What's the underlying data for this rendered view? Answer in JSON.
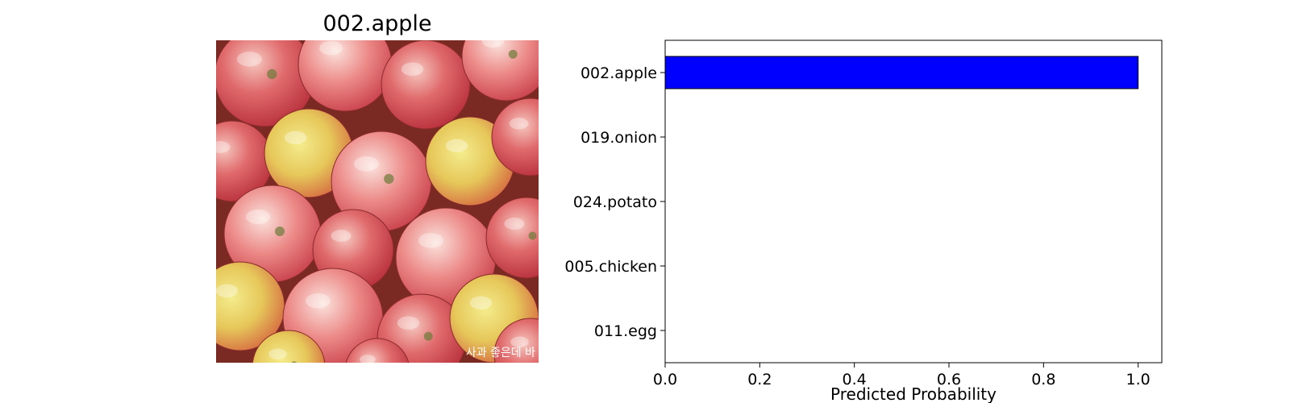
{
  "image_panel": {
    "title": "002.apple",
    "watermark": "사과 좋은데 바"
  },
  "chart_data": {
    "type": "bar",
    "orientation": "horizontal",
    "categories": [
      "002.apple",
      "019.onion",
      "024.potato",
      "005.chicken",
      "011.egg"
    ],
    "values": [
      1.0,
      0.0,
      0.0,
      0.0,
      0.0
    ],
    "xlabel": "Predicted Probability",
    "ylabel": "",
    "xlim": [
      0,
      1.05
    ],
    "xticks": [
      0.0,
      0.2,
      0.4,
      0.6,
      0.8,
      1.0
    ],
    "xtick_labels": [
      "0.0",
      "0.2",
      "0.4",
      "0.6",
      "0.8",
      "1.0"
    ],
    "grid": false,
    "bar_color": "#0000ff",
    "edge_color": "#000000"
  }
}
